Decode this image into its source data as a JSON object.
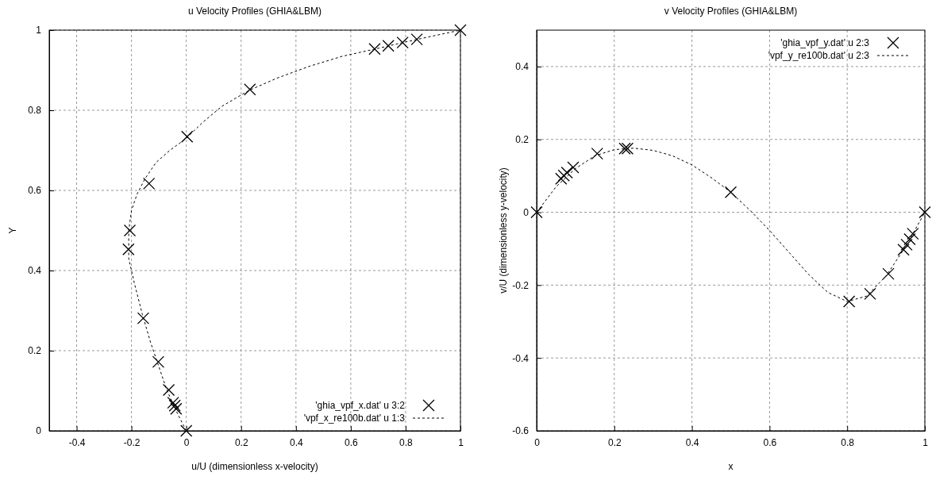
{
  "chart_data": [
    {
      "type": "scatter",
      "title": "u Velocity Profiles (GHIA&LBM)",
      "xlabel": "u/U (dimensionless x-velocity)",
      "ylabel": "Y",
      "xlim": [
        -0.5,
        1
      ],
      "xticks": [
        -0.4,
        -0.2,
        0,
        0.2,
        0.4,
        0.6,
        0.8,
        1
      ],
      "ylim": [
        0,
        1
      ],
      "yticks": [
        0,
        0.2,
        0.4,
        0.6,
        0.8,
        1
      ],
      "grid": true,
      "legend": "bottom right",
      "series": [
        {
          "name": "'ghia_vpf_x.dat' u 3:2",
          "marker": "cross",
          "color": "#000000",
          "x": [
            0,
            -0.037,
            -0.042,
            -0.048,
            -0.064,
            -0.102,
            -0.157,
            -0.211,
            -0.206,
            -0.136,
            0.003,
            0.232,
            0.687,
            0.737,
            0.789,
            0.841,
            1
          ],
          "values": [
            0,
            0.055,
            0.063,
            0.07,
            0.102,
            0.172,
            0.281,
            0.453,
            0.5,
            0.617,
            0.734,
            0.852,
            0.953,
            0.961,
            0.969,
            0.977,
            1
          ]
        },
        {
          "name": "'vpf_x_re100b.dat' u 1:3",
          "type": "line",
          "line_style": "dashed",
          "color": "#000000",
          "x": [
            0,
            -0.03,
            -0.05,
            -0.07,
            -0.1,
            -0.13,
            -0.16,
            -0.19,
            -0.21,
            -0.21,
            -0.2,
            -0.18,
            -0.15,
            -0.11,
            -0.06,
            0,
            0.06,
            0.13,
            0.23,
            0.33,
            0.45,
            0.57,
            0.69,
            0.79,
            0.89,
            1
          ],
          "values": [
            0,
            0.04,
            0.07,
            0.1,
            0.16,
            0.22,
            0.29,
            0.37,
            0.43,
            0.5,
            0.55,
            0.59,
            0.63,
            0.67,
            0.7,
            0.73,
            0.77,
            0.81,
            0.85,
            0.88,
            0.91,
            0.935,
            0.953,
            0.969,
            0.984,
            1
          ]
        }
      ]
    },
    {
      "type": "scatter",
      "title": "v Velocity Profiles (GHIA&LBM)",
      "xlabel": "x",
      "ylabel": "v/U (dimensionless y-velocity)",
      "xlim": [
        0,
        1
      ],
      "xticks": [
        0,
        0.2,
        0.4,
        0.6,
        0.8,
        1
      ],
      "ylim": [
        -0.6,
        0.5
      ],
      "yticks": [
        -0.6,
        -0.4,
        -0.2,
        0,
        0.2,
        0.4
      ],
      "grid": true,
      "legend": "top right",
      "series": [
        {
          "name": "'ghia_vpf_y.dat' u 2:3",
          "marker": "cross",
          "color": "#000000",
          "x": [
            0,
            0.063,
            0.07,
            0.078,
            0.094,
            0.156,
            0.227,
            0.234,
            0.5,
            0.805,
            0.859,
            0.906,
            0.945,
            0.953,
            0.961,
            0.969,
            1
          ],
          "values": [
            0,
            0.092,
            0.101,
            0.109,
            0.123,
            0.161,
            0.175,
            0.175,
            0.055,
            -0.245,
            -0.224,
            -0.169,
            -0.103,
            -0.089,
            -0.074,
            -0.059,
            0
          ]
        },
        {
          "name": "'vpf_y_re100b.dat' u 2:3",
          "type": "line",
          "line_style": "dashed",
          "color": "#000000",
          "x": [
            0,
            0.05,
            0.1,
            0.15,
            0.2,
            0.25,
            0.3,
            0.35,
            0.4,
            0.45,
            0.5,
            0.55,
            0.6,
            0.65,
            0.7,
            0.75,
            0.8,
            0.85,
            0.9,
            0.95,
            1
          ],
          "values": [
            0,
            0.07,
            0.12,
            0.155,
            0.172,
            0.176,
            0.17,
            0.155,
            0.13,
            0.095,
            0.055,
            0.005,
            -0.05,
            -0.11,
            -0.17,
            -0.22,
            -0.245,
            -0.23,
            -0.175,
            -0.095,
            0
          ]
        }
      ]
    }
  ]
}
